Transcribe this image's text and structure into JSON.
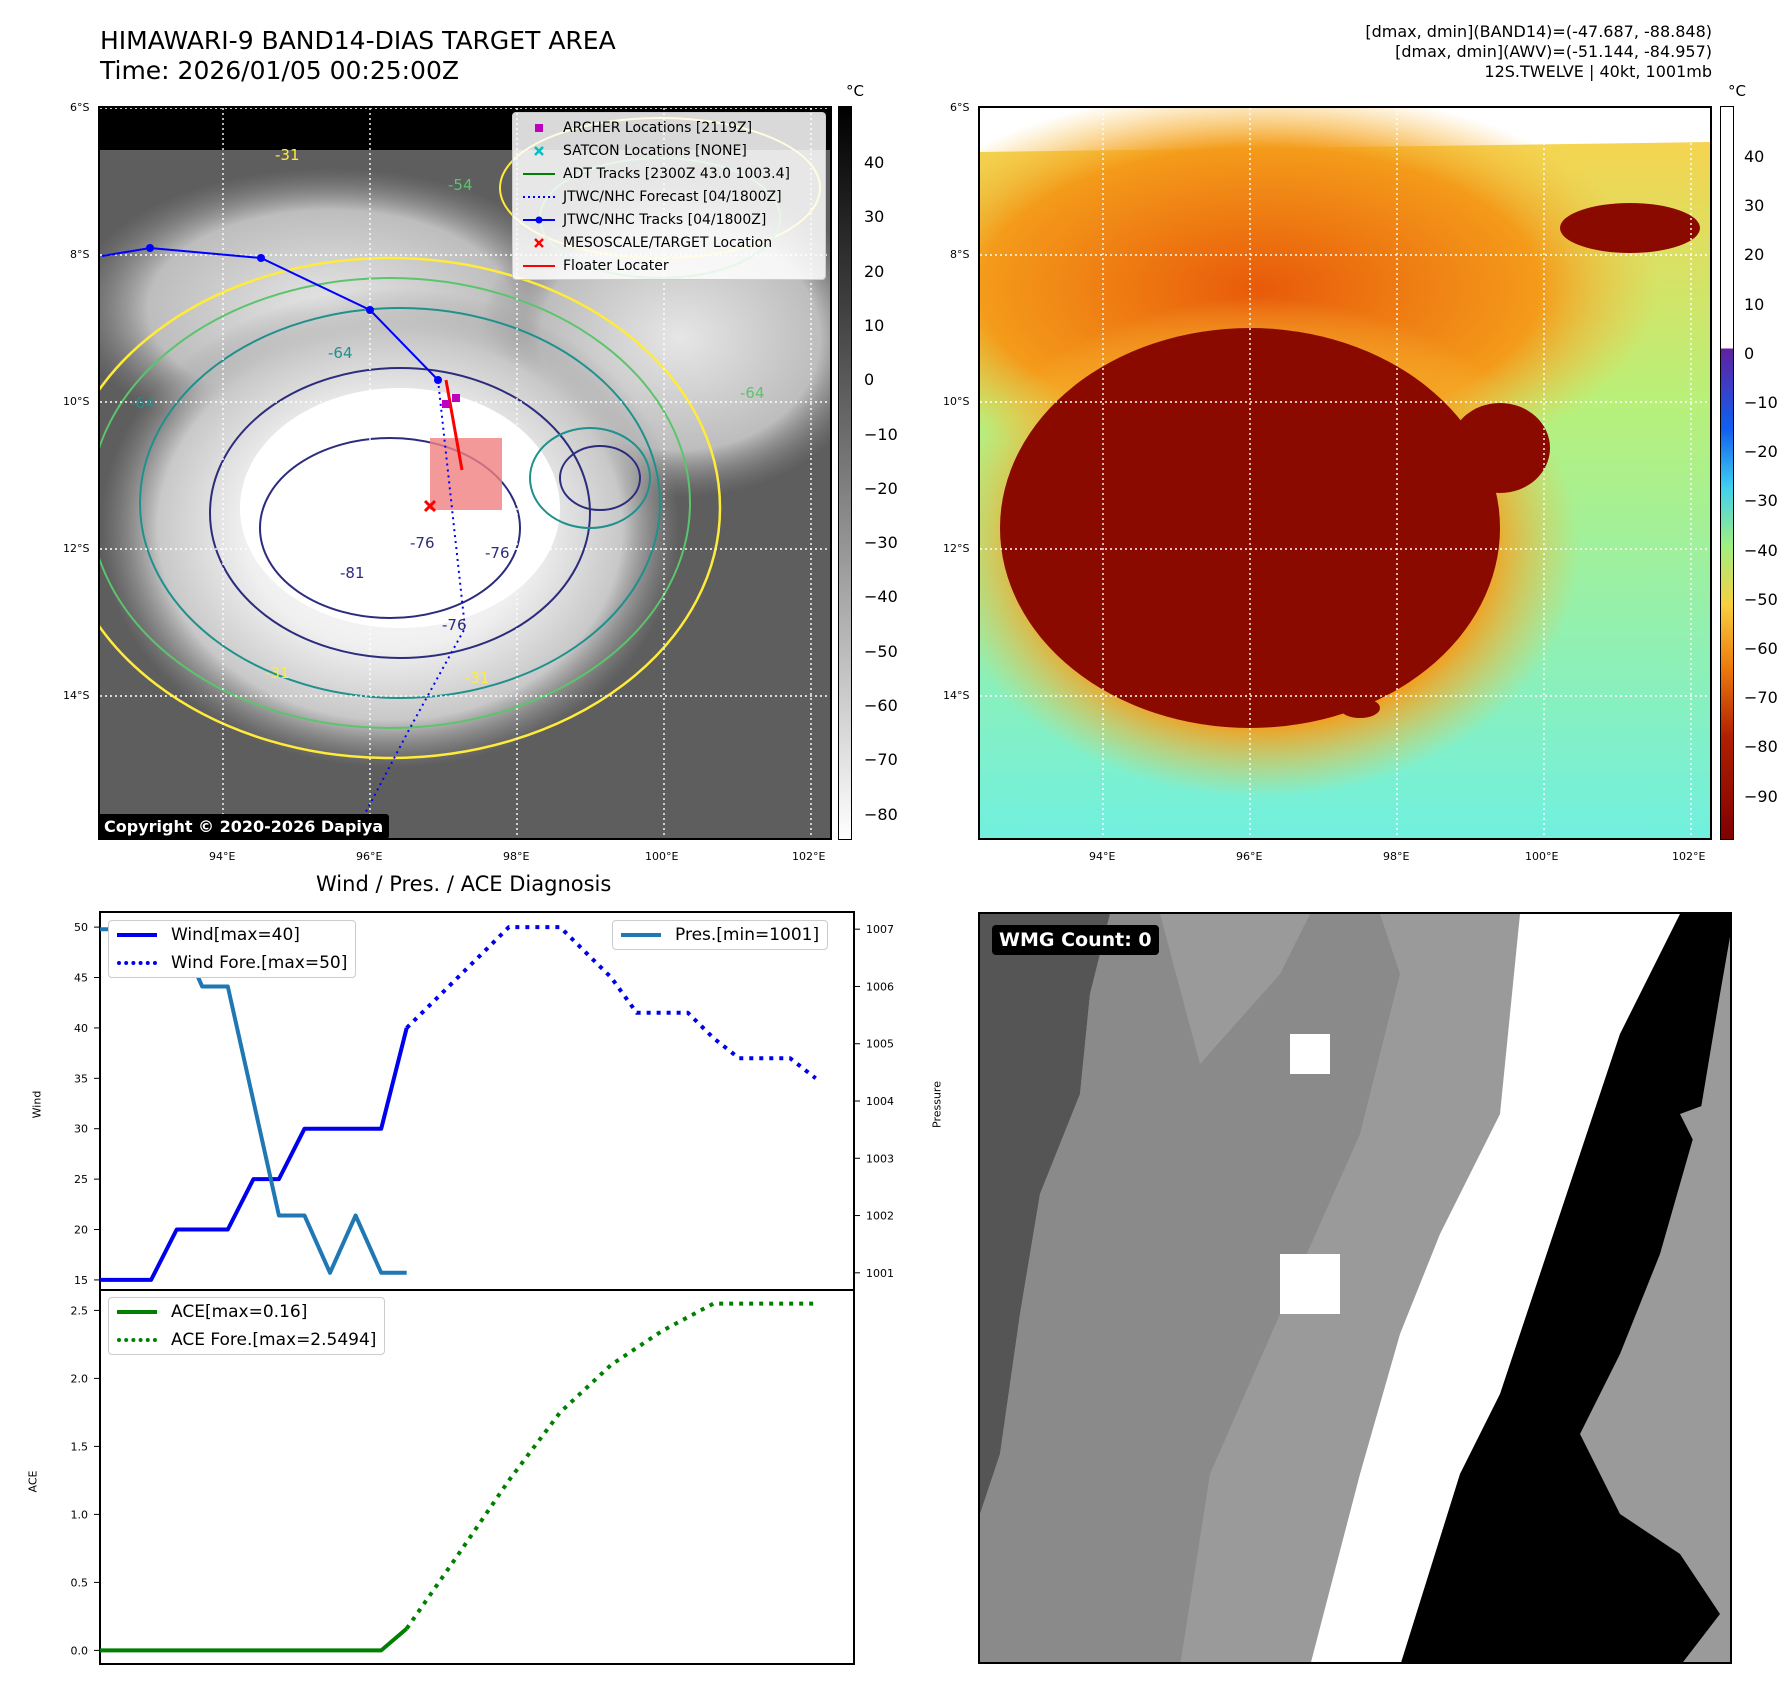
{
  "header": {
    "title_line1": "HIMAWARI-9 BAND14-DIAS TARGET AREA",
    "title_line2": "Time: 2026/01/05 00:25:00Z",
    "stats_line1": "[dmax, dmin](BAND14)=(-47.687, -88.848)",
    "stats_line2": "[dmax, dmin](AWV)=(-51.144, -84.957)",
    "stats_line3": "12S.TWELVE | 40kt, 1001mb"
  },
  "map_axes": {
    "lat_labels": [
      "6°S",
      "8°S",
      "10°S",
      "12°S",
      "14°S"
    ],
    "lon_labels": [
      "94°E",
      "96°E",
      "98°E",
      "100°E",
      "102°E"
    ]
  },
  "left_colorbar": {
    "unit": "°C",
    "ticks": [
      "40",
      "30",
      "20",
      "10",
      "0",
      "−10",
      "−20",
      "−30",
      "−40",
      "−50",
      "−60",
      "−70",
      "−80"
    ]
  },
  "right_colorbar": {
    "unit": "°C",
    "ticks": [
      "40",
      "30",
      "20",
      "10",
      "0",
      "−10",
      "−20",
      "−30",
      "−40",
      "−50",
      "−60",
      "−70",
      "−80",
      "−90"
    ]
  },
  "map_legend": {
    "items": [
      {
        "label": "ARCHER Locations [2119Z]",
        "color": "#c000c0",
        "symbol": "square"
      },
      {
        "label": "SATCON Locations [NONE]",
        "color": "#00c0c0",
        "symbol": "x"
      },
      {
        "label": "ADT Tracks [2300Z 43.0 1003.4]",
        "color": "#008000",
        "symbol": "line"
      },
      {
        "label": "JTWC/NHC Forecast [04/1800Z]",
        "color": "#0000ff",
        "symbol": "dotted"
      },
      {
        "label": "JTWC/NHC Tracks [04/1800Z]",
        "color": "#0000ff",
        "symbol": "line-dot"
      },
      {
        "label": "MESOSCALE/TARGET Location",
        "color": "#ff0000",
        "symbol": "x"
      },
      {
        "label": "Floater Locater",
        "color": "#ff0000",
        "symbol": "line"
      }
    ]
  },
  "contour_labels": [
    "-31",
    "-54",
    "-64",
    "-64",
    "-64",
    "-76",
    "-76",
    "-81",
    "-76",
    "-31",
    "-31"
  ],
  "copyright": "Copyright © 2020-2026 Dapiya",
  "diagnosis_title": "Wind / Pres. / ACE Diagnosis",
  "wmg_count": "WMG Count: 0",
  "colors": {
    "wind": "#0000ee",
    "pressure": "#1f77b4",
    "ace": "#008000",
    "target_box": "#f08080",
    "contour_yellow": "#ffeb3b",
    "contour_green": "#5cc46c",
    "contour_teal": "#20908c",
    "contour_navy": "#2c2c7c"
  },
  "chart_data": [
    {
      "type": "line",
      "title": "Wind / Pres. / ACE Diagnosis",
      "ylabel": "Wind",
      "y2label": "Pressure",
      "ylim": [
        14,
        51.5
      ],
      "y2lim": [
        1000.7,
        1007.3
      ],
      "yticks": [
        15,
        20,
        25,
        30,
        35,
        40,
        45,
        50
      ],
      "y2ticks": [
        1001,
        1002,
        1003,
        1004,
        1005,
        1006,
        1007
      ],
      "x": [
        0,
        1,
        2,
        3,
        4,
        5,
        6,
        7,
        8,
        9,
        10,
        11,
        12,
        13,
        14,
        15,
        16,
        17,
        18,
        19,
        20,
        21,
        22,
        23,
        24,
        25,
        26,
        27,
        28,
        29
      ],
      "series": [
        {
          "name": "Wind[max=40]",
          "axis": "left",
          "style": "solid",
          "color": "#0000ee",
          "x": [
            0,
            2,
            3,
            5,
            6,
            7,
            8,
            9,
            10,
            11,
            12
          ],
          "values": [
            15,
            15,
            20,
            20,
            25,
            25,
            30,
            30,
            30,
            30,
            40
          ]
        },
        {
          "name": "Wind Fore.[max=50]",
          "axis": "left",
          "style": "dotted",
          "color": "#0000ee",
          "x": [
            12,
            13,
            14,
            15,
            16,
            17,
            18,
            19,
            20,
            21,
            22,
            23,
            24,
            25,
            26,
            27,
            28
          ],
          "values": [
            40,
            42.5,
            45,
            47.5,
            50,
            50,
            50,
            47.5,
            45,
            41.5,
            41.5,
            41.5,
            39,
            37,
            37,
            37,
            35
          ]
        },
        {
          "name": "Pres.[min=1001]",
          "axis": "right",
          "style": "solid",
          "color": "#1f77b4",
          "x": [
            0,
            1,
            2,
            3,
            4,
            5,
            6,
            7,
            8,
            9,
            10,
            11,
            12
          ],
          "values": [
            1007,
            1007,
            1007,
            1007,
            1006,
            1006,
            1004,
            1002,
            1002,
            1001,
            1002,
            1001,
            1001
          ]
        }
      ]
    },
    {
      "type": "line",
      "ylabel": "ACE",
      "ylim": [
        -0.1,
        2.65
      ],
      "yticks": [
        0.0,
        0.5,
        1.0,
        1.5,
        2.0,
        2.5
      ],
      "series": [
        {
          "name": "ACE[max=0.16]",
          "style": "solid",
          "color": "#008000",
          "x": [
            0,
            11,
            12
          ],
          "values": [
            0,
            0,
            0.16
          ]
        },
        {
          "name": "ACE Fore.[max=2.5494]",
          "style": "dotted",
          "color": "#008000",
          "x": [
            12,
            14,
            16,
            18,
            20,
            22,
            24,
            26,
            28
          ],
          "values": [
            0.16,
            0.7,
            1.25,
            1.75,
            2.1,
            2.35,
            2.55,
            2.55,
            2.55
          ]
        }
      ]
    }
  ]
}
